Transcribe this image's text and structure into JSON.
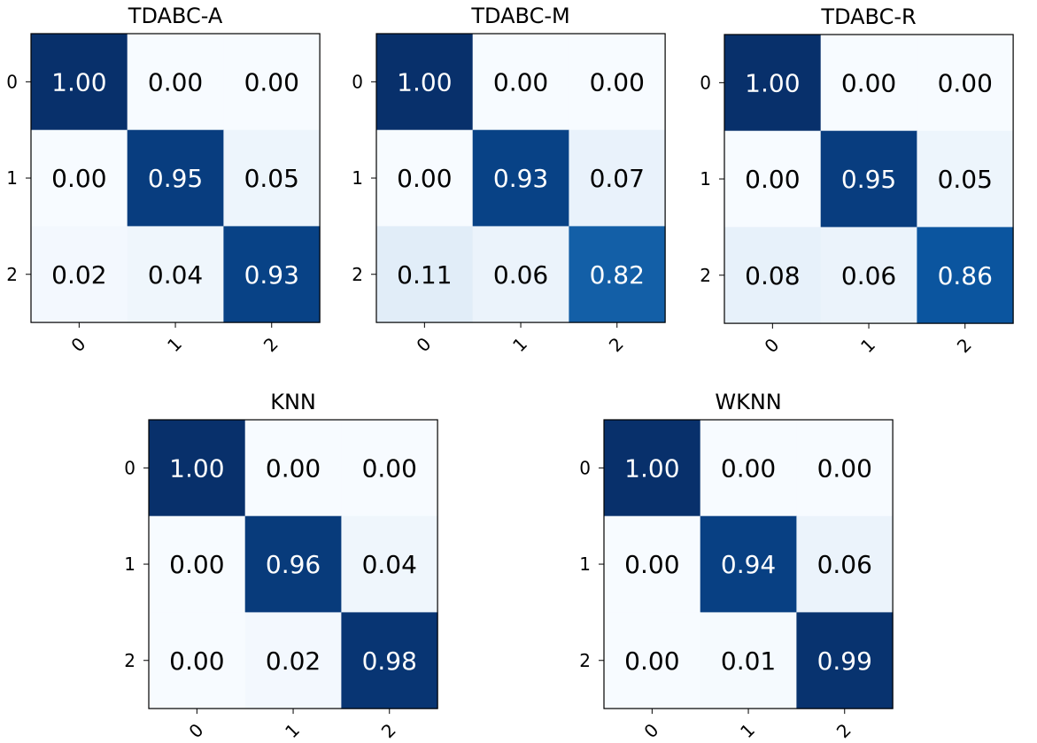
{
  "chart_data": [
    {
      "type": "heatmap",
      "title": "TDABC-A",
      "x_tick_labels": [
        "0",
        "1",
        "2"
      ],
      "y_tick_labels": [
        "0",
        "1",
        "2"
      ],
      "values": [
        [
          1.0,
          0.0,
          0.0
        ],
        [
          0.0,
          0.95,
          0.05
        ],
        [
          0.02,
          0.04,
          0.93
        ]
      ],
      "value_labels": [
        [
          "1.00",
          "0.00",
          "0.00"
        ],
        [
          "0.00",
          "0.95",
          "0.05"
        ],
        [
          "0.02",
          "0.04",
          "0.93"
        ]
      ],
      "colormap": "Blues",
      "value_range": [
        0,
        1
      ]
    },
    {
      "type": "heatmap",
      "title": "TDABC-M",
      "x_tick_labels": [
        "0",
        "1",
        "2"
      ],
      "y_tick_labels": [
        "0",
        "1",
        "2"
      ],
      "values": [
        [
          1.0,
          0.0,
          0.0
        ],
        [
          0.0,
          0.93,
          0.07
        ],
        [
          0.11,
          0.06,
          0.82
        ]
      ],
      "value_labels": [
        [
          "1.00",
          "0.00",
          "0.00"
        ],
        [
          "0.00",
          "0.93",
          "0.07"
        ],
        [
          "0.11",
          "0.06",
          "0.82"
        ]
      ],
      "colormap": "Blues",
      "value_range": [
        0,
        1
      ]
    },
    {
      "type": "heatmap",
      "title": "TDABC-R",
      "x_tick_labels": [
        "0",
        "1",
        "2"
      ],
      "y_tick_labels": [
        "0",
        "1",
        "2"
      ],
      "values": [
        [
          1.0,
          0.0,
          0.0
        ],
        [
          0.0,
          0.95,
          0.05
        ],
        [
          0.08,
          0.06,
          0.86
        ]
      ],
      "value_labels": [
        [
          "1.00",
          "0.00",
          "0.00"
        ],
        [
          "0.00",
          "0.95",
          "0.05"
        ],
        [
          "0.08",
          "0.06",
          "0.86"
        ]
      ],
      "colormap": "Blues",
      "value_range": [
        0,
        1
      ]
    },
    {
      "type": "heatmap",
      "title": "KNN",
      "x_tick_labels": [
        "0",
        "1",
        "2"
      ],
      "y_tick_labels": [
        "0",
        "1",
        "2"
      ],
      "values": [
        [
          1.0,
          0.0,
          0.0
        ],
        [
          0.0,
          0.96,
          0.04
        ],
        [
          0.0,
          0.02,
          0.98
        ]
      ],
      "value_labels": [
        [
          "1.00",
          "0.00",
          "0.00"
        ],
        [
          "0.00",
          "0.96",
          "0.04"
        ],
        [
          "0.00",
          "0.02",
          "0.98"
        ]
      ],
      "colormap": "Blues",
      "value_range": [
        0,
        1
      ]
    },
    {
      "type": "heatmap",
      "title": "WKNN",
      "x_tick_labels": [
        "0",
        "1",
        "2"
      ],
      "y_tick_labels": [
        "0",
        "1",
        "2"
      ],
      "values": [
        [
          1.0,
          0.0,
          0.0
        ],
        [
          0.0,
          0.94,
          0.06
        ],
        [
          0.0,
          0.01,
          0.99
        ]
      ],
      "value_labels": [
        [
          "1.00",
          "0.00",
          "0.00"
        ],
        [
          "0.00",
          "0.94",
          "0.06"
        ],
        [
          "0.00",
          "0.01",
          "0.99"
        ]
      ],
      "colormap": "Blues",
      "value_range": [
        0,
        1
      ]
    }
  ]
}
